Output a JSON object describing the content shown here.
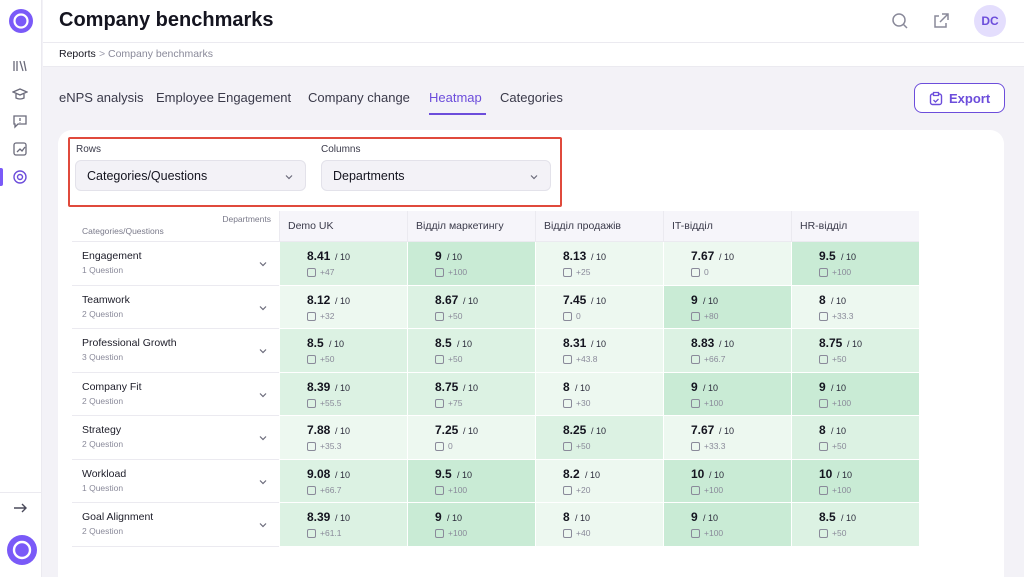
{
  "header": {
    "title": "Company benchmarks",
    "avatar_initials": "DC"
  },
  "breadcrumb": {
    "root": "Reports",
    "separator": ">",
    "current": "Company benchmarks"
  },
  "tabs": [
    {
      "label": "eNPS analysis",
      "active": false
    },
    {
      "label": "Employee Engagement",
      "active": false
    },
    {
      "label": "Company change",
      "active": false
    },
    {
      "label": "Heatmap",
      "active": true
    },
    {
      "label": "Categories",
      "active": false
    }
  ],
  "export_label": "Export",
  "filters": {
    "rows_label": "Rows",
    "rows_value": "Categories/Questions",
    "columns_label": "Columns",
    "columns_value": "Departments"
  },
  "table": {
    "corner_top": "Departments",
    "corner_bottom": "Categories/Questions",
    "columns": [
      "Demo UK",
      "Відділ маркетингу",
      "Відділ продажів",
      "IT-відділ",
      "HR-відділ"
    ],
    "out_of": "/ 10",
    "rows": [
      {
        "name": "Engagement",
        "sub": "1 Question",
        "cells": [
          {
            "score": "8.41",
            "delta": "+47"
          },
          {
            "score": "9",
            "delta": "+100"
          },
          {
            "score": "8.13",
            "delta": "+25"
          },
          {
            "score": "7.67",
            "delta": "0"
          },
          {
            "score": "9.5",
            "delta": "+100"
          }
        ]
      },
      {
        "name": "Teamwork",
        "sub": "2 Question",
        "cells": [
          {
            "score": "8.12",
            "delta": "+32"
          },
          {
            "score": "8.67",
            "delta": "+50"
          },
          {
            "score": "7.45",
            "delta": "0"
          },
          {
            "score": "9",
            "delta": "+80"
          },
          {
            "score": "8",
            "delta": "+33.3"
          }
        ]
      },
      {
        "name": "Professional Growth",
        "sub": "3 Question",
        "cells": [
          {
            "score": "8.5",
            "delta": "+50"
          },
          {
            "score": "8.5",
            "delta": "+50"
          },
          {
            "score": "8.31",
            "delta": "+43.8"
          },
          {
            "score": "8.83",
            "delta": "+66.7"
          },
          {
            "score": "8.75",
            "delta": "+50"
          }
        ]
      },
      {
        "name": "Company Fit",
        "sub": "2 Question",
        "cells": [
          {
            "score": "8.39",
            "delta": "+55.5"
          },
          {
            "score": "8.75",
            "delta": "+75"
          },
          {
            "score": "8",
            "delta": "+30"
          },
          {
            "score": "9",
            "delta": "+100"
          },
          {
            "score": "9",
            "delta": "+100"
          }
        ]
      },
      {
        "name": "Strategy",
        "sub": "2 Question",
        "cells": [
          {
            "score": "7.88",
            "delta": "+35.3"
          },
          {
            "score": "7.25",
            "delta": "0"
          },
          {
            "score": "8.25",
            "delta": "+50"
          },
          {
            "score": "7.67",
            "delta": "+33.3"
          },
          {
            "score": "8",
            "delta": "+50"
          }
        ]
      },
      {
        "name": "Workload",
        "sub": "1 Question",
        "cells": [
          {
            "score": "9.08",
            "delta": "+66.7"
          },
          {
            "score": "9.5",
            "delta": "+100"
          },
          {
            "score": "8.2",
            "delta": "+20"
          },
          {
            "score": "10",
            "delta": "+100"
          },
          {
            "score": "10",
            "delta": "+100"
          }
        ]
      },
      {
        "name": "Goal Alignment",
        "sub": "2 Question",
        "cells": [
          {
            "score": "8.39",
            "delta": "+61.1"
          },
          {
            "score": "9",
            "delta": "+100"
          },
          {
            "score": "8",
            "delta": "+40"
          },
          {
            "score": "9",
            "delta": "+100"
          },
          {
            "score": "8.5",
            "delta": "+50"
          }
        ]
      }
    ]
  },
  "colors": {
    "accent": "#6c4ddb",
    "highlight_border": "#e04a3c",
    "heat_high": "#c9ebd5",
    "heat_mid": "#dcf2e3",
    "heat_low": "#edf8f0"
  }
}
